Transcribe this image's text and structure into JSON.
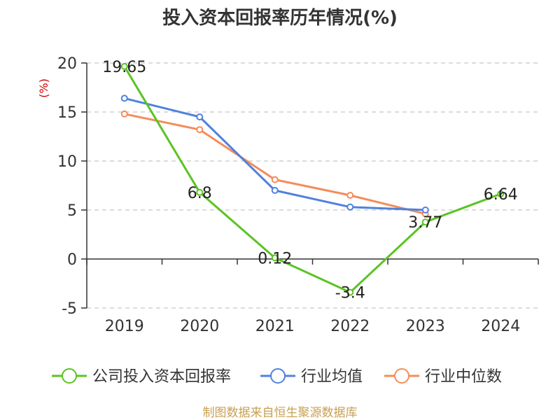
{
  "chart_data": {
    "type": "line",
    "title": "投入资本回报率历年情况(%)",
    "ylabel": "(%)",
    "categories": [
      "2019",
      "2020",
      "2021",
      "2022",
      "2023",
      "2024"
    ],
    "ylim": [
      -5,
      20
    ],
    "yticks": [
      20,
      15,
      10,
      5,
      0,
      -5
    ],
    "grid": true,
    "legend_position": "bottom",
    "series": [
      {
        "name": "公司投入资本回报率",
        "color": "#5ac423",
        "values": [
          19.65,
          6.8,
          0.12,
          -3.4,
          3.77,
          6.64
        ],
        "labels": [
          "19.65",
          "6.8",
          "0.12",
          "-3.4",
          "3.77",
          "6.64"
        ]
      },
      {
        "name": "行业均值",
        "color": "#5082dc",
        "values": [
          16.4,
          14.5,
          7.0,
          5.3,
          5.0,
          null
        ]
      },
      {
        "name": "行业中位数",
        "color": "#f58c5a",
        "values": [
          14.8,
          13.2,
          8.1,
          6.5,
          4.6,
          null
        ]
      }
    ]
  },
  "footer": {
    "source": "制图数据来自恒生聚源数据库"
  }
}
